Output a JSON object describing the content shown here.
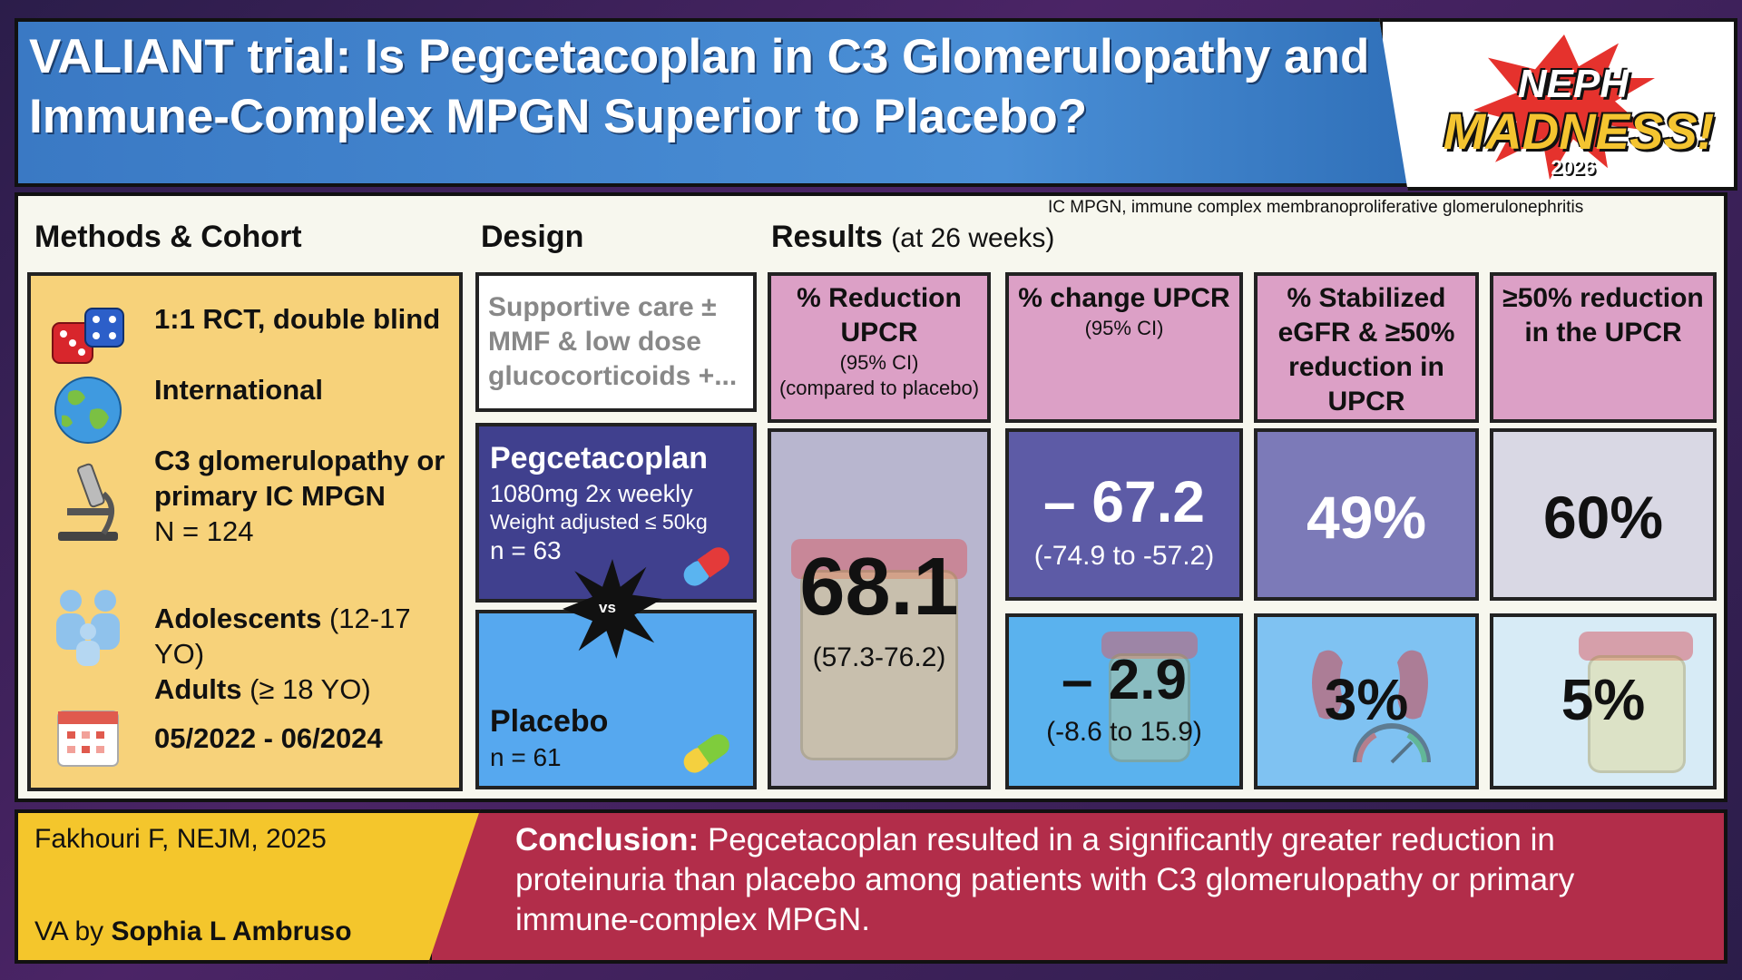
{
  "header": {
    "title": "VALIANT trial: Is Pegcetacoplan in C3 Glomerulopathy and\nImmune-Complex MPGN Superior to Placebo?"
  },
  "logo": {
    "line1": "NEPH",
    "line2": "MADNESS!",
    "year": "2026"
  },
  "abbreviation": "IC MPGN, immune complex membranoproliferative glomerulonephritis",
  "sections": {
    "methods_title": "Methods & Cohort",
    "design_title": "Design",
    "results_title": "Results",
    "results_sub": "(at 26 weeks)"
  },
  "methods": {
    "rct": "1:1 RCT, double blind",
    "international": "International",
    "condition_line1": "C3 glomerulopathy or",
    "condition_line2": "primary IC MPGN",
    "n_total": "N = 124",
    "adolescents": "Adolescents",
    "adolescents_age": "(12-17 YO)",
    "adults": "Adults",
    "adults_age": "(≥ 18 YO)",
    "dates": "05/2022 - 06/2024"
  },
  "design": {
    "support": "Supportive care ± MMF & low dose glucocorticoids +...",
    "peg_name": "Pegcetacoplan",
    "peg_dose": "1080mg 2x weekly",
    "peg_weight": "Weight adjusted ≤ 50kg",
    "peg_n": "n = 63",
    "vs": "vs",
    "placebo_name": "Placebo",
    "placebo_n": "n = 61"
  },
  "results": {
    "col1": {
      "title": "% Reduction UPCR",
      "sub1": "(95% CI)",
      "sub2": "(compared to placebo)",
      "value": "68.1",
      "ci": "(57.3-76.2)"
    },
    "col2": {
      "title": "% change UPCR",
      "sub": "(95% CI)",
      "peg_value": "– 67.2",
      "peg_ci": "(-74.9 to -57.2)",
      "placebo_value": "– 2.9",
      "placebo_ci": "(-8.6 to 15.9)"
    },
    "col3": {
      "title": "% Stabilized eGFR & ≥50% reduction in UPCR",
      "peg_value": "49%",
      "placebo_value": "3%"
    },
    "col4": {
      "title": "≥50% reduction in the UPCR",
      "peg_value": "60%",
      "placebo_value": "5%"
    }
  },
  "footer": {
    "citation": "Fakhouri F, NEJM, 2025",
    "va_prefix": "VA by",
    "va_author": "Sophia L Ambruso",
    "conclusion_label": "Conclusion:",
    "conclusion_text": " Pegcetacoplan resulted in a significantly greater reduction in proteinuria than placebo among patients with C3 glomerulopathy or primary immune-complex MPGN."
  },
  "colors": {
    "header_blue": "#3a79c4",
    "methods_yellow": "#f7d27a",
    "result_pink": "#dca0c6",
    "peg_purple": "#40408e",
    "placebo_blue": "#56a8ef",
    "conclusion_red": "#b22d4a"
  }
}
